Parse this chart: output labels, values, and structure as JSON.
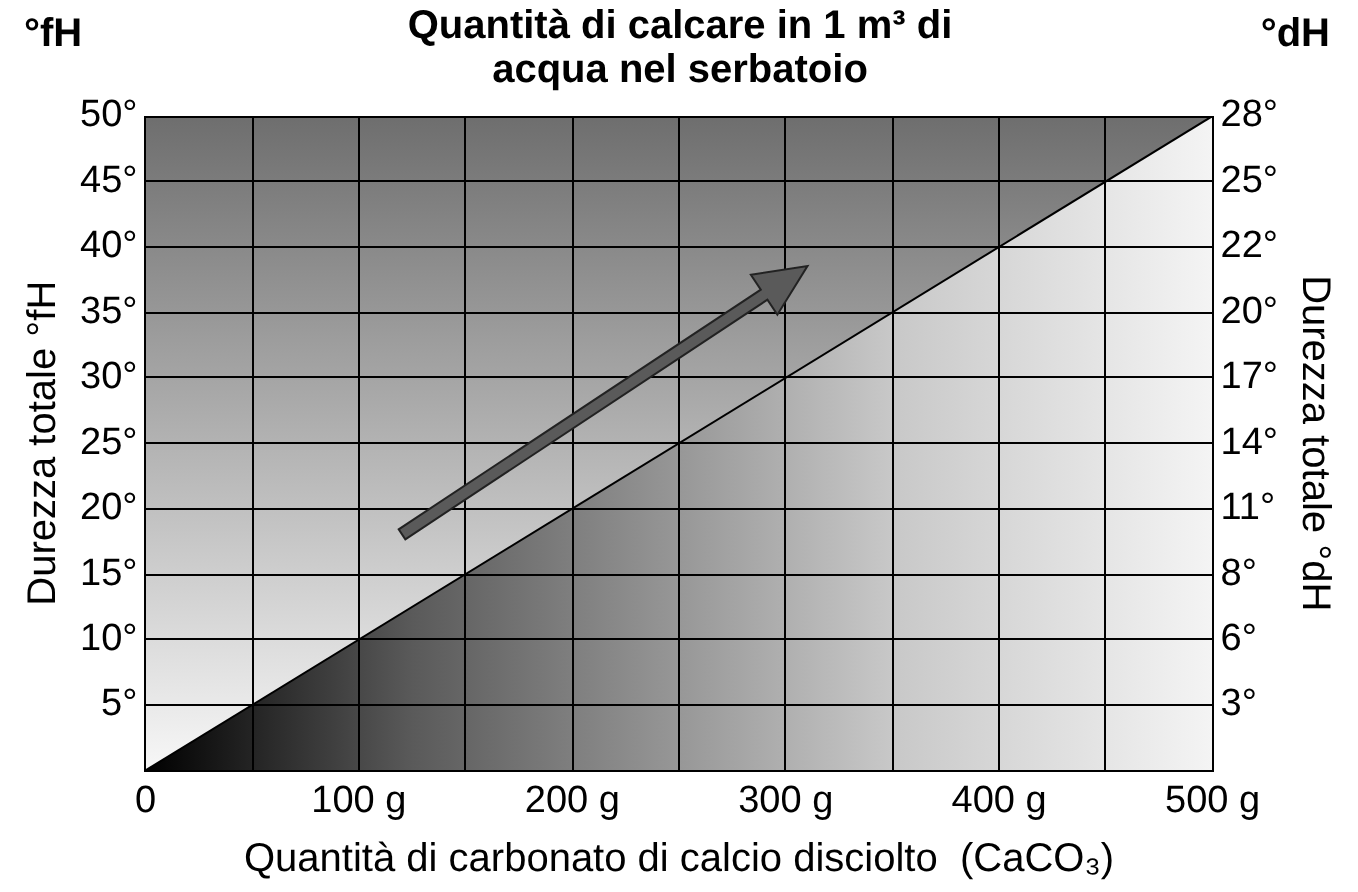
{
  "chart_data": {
    "type": "line",
    "title": "Quantità di calcare in 1 m³ di acqua nel serbatoio",
    "xlabel": "Quantità di carbonato di calcio disciolto  (CaCO₃)",
    "ylabel": "Durezza totale °fH",
    "y2label": "Durezza totale °dH",
    "annotations": [
      "°fH",
      "°dH"
    ],
    "x": [
      0,
      500
    ],
    "values": [
      0,
      50
    ],
    "color": "#000000",
    "marker": "none",
    "grid": true,
    "legend": false,
    "xlim": [
      0,
      500
    ],
    "xticks": [
      {
        "value": 0,
        "label": "0"
      },
      {
        "value": 50,
        "label": null
      },
      {
        "value": 100,
        "label": "100 g"
      },
      {
        "value": 150,
        "label": null
      },
      {
        "value": 200,
        "label": "200 g"
      },
      {
        "value": 250,
        "label": null
      },
      {
        "value": 300,
        "label": "300 g"
      },
      {
        "value": 350,
        "label": null
      },
      {
        "value": 400,
        "label": "400 g"
      },
      {
        "value": 450,
        "label": null
      },
      {
        "value": 500,
        "label": "500 g"
      }
    ],
    "ylim": [
      0,
      50
    ],
    "yticks": [
      {
        "value": 5,
        "label": "5°"
      },
      {
        "value": 10,
        "label": "10°"
      },
      {
        "value": 15,
        "label": "15°"
      },
      {
        "value": 20,
        "label": "20°"
      },
      {
        "value": 25,
        "label": "25°"
      },
      {
        "value": 30,
        "label": "30°"
      },
      {
        "value": 35,
        "label": "35°"
      },
      {
        "value": 40,
        "label": "40°"
      },
      {
        "value": 45,
        "label": "45°"
      },
      {
        "value": 50,
        "label": "50°"
      }
    ],
    "y2lim": [
      0,
      28
    ],
    "y2ticks": [
      {
        "value": 2.8,
        "label": "3°"
      },
      {
        "value": 5.6,
        "label": "6°"
      },
      {
        "value": 8.4,
        "label": "8°"
      },
      {
        "value": 11.2,
        "label": "11°"
      },
      {
        "value": 14,
        "label": "14°"
      },
      {
        "value": 16.8,
        "label": "17°"
      },
      {
        "value": 19.6,
        "label": "20°"
      },
      {
        "value": 22.4,
        "label": "22°"
      },
      {
        "value": 25.2,
        "label": "25°"
      },
      {
        "value": 28,
        "label": "28°"
      }
    ]
  }
}
